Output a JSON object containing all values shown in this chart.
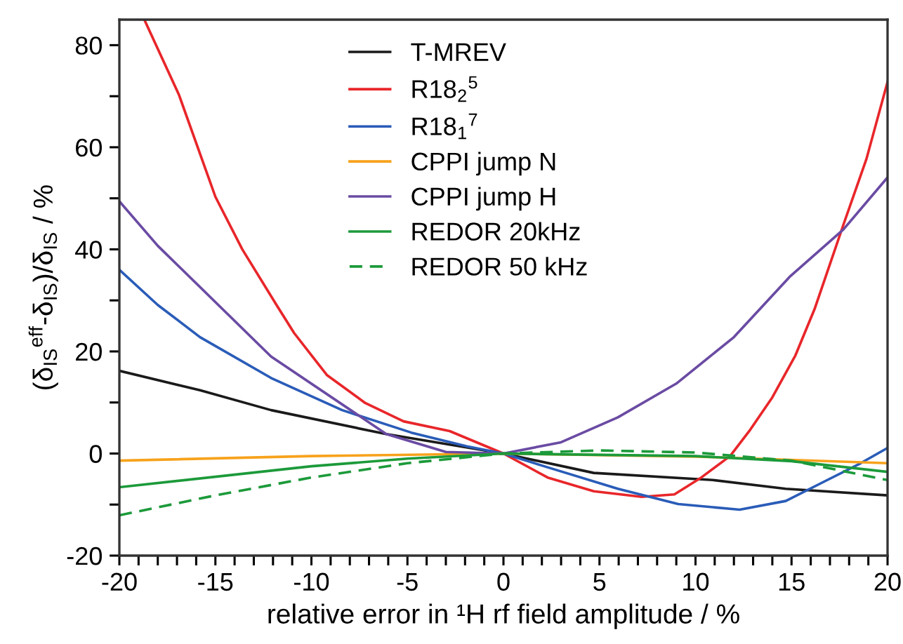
{
  "chart_data": {
    "type": "line",
    "xlabel": "relative error in ¹H rf field amplitude / %",
    "ylabel": "(δ$_{IS}$$^{eff}$-δ$_{IS}$)/δ$_{IS}$ / %",
    "xlim": [
      -20,
      20
    ],
    "ylim": [
      -20,
      85
    ],
    "xticks": [
      -20,
      {
        "value": -19,
        "label": null
      },
      {
        "value": -18,
        "label": null
      },
      {
        "value": -17,
        "label": null
      },
      {
        "value": -16,
        "label": null
      },
      -15,
      {
        "value": -14,
        "label": null
      },
      {
        "value": -13,
        "label": null
      },
      {
        "value": -12,
        "label": null
      },
      {
        "value": -11,
        "label": null
      },
      -10,
      {
        "value": -9,
        "label": null
      },
      {
        "value": -8,
        "label": null
      },
      {
        "value": -7,
        "label": null
      },
      {
        "value": -6,
        "label": null
      },
      -5,
      {
        "value": -4,
        "label": null
      },
      {
        "value": -3,
        "label": null
      },
      {
        "value": -2,
        "label": null
      },
      {
        "value": -1,
        "label": null
      },
      0,
      {
        "value": 1,
        "label": null
      },
      {
        "value": 2,
        "label": null
      },
      {
        "value": 3,
        "label": null
      },
      {
        "value": 4,
        "label": null
      },
      5,
      {
        "value": 6,
        "label": null
      },
      {
        "value": 7,
        "label": null
      },
      {
        "value": 8,
        "label": null
      },
      {
        "value": 9,
        "label": null
      },
      10,
      {
        "value": 11,
        "label": null
      },
      {
        "value": 12,
        "label": null
      },
      {
        "value": 13,
        "label": null
      },
      {
        "value": 14,
        "label": null
      },
      15,
      {
        "value": 16,
        "label": null
      },
      {
        "value": 17,
        "label": null
      },
      {
        "value": 18,
        "label": null
      },
      {
        "value": 19,
        "label": null
      },
      20
    ],
    "yticks": [
      -20,
      {
        "value": -10,
        "label": null
      },
      0,
      {
        "value": 10,
        "label": null
      },
      20,
      {
        "value": 30,
        "label": null
      },
      40,
      {
        "value": 50,
        "label": null
      },
      60,
      {
        "value": 70,
        "label": null
      },
      80
    ],
    "grid": false,
    "legend": "top",
    "marker": "none",
    "series": [
      {
        "name": "T-MREV",
        "color": "#1a1a1a",
        "x": [
          -20,
          -15.8,
          -12.1,
          -6.1,
          0,
          4.7,
          10.9,
          14.7,
          20
        ],
        "values": [
          16.2,
          12.4,
          8.5,
          3.8,
          0,
          -3.8,
          -5.2,
          -6.9,
          -8.2
        ]
      },
      {
        "name": "R18$_{2}$$^{5}$",
        "color": "#e8262a",
        "x": [
          -18.7,
          -16.9,
          -15.0,
          -13.6,
          -11.8,
          -10.9,
          -9.2,
          -7.2,
          -5.2,
          -2.8,
          0,
          2.3,
          4.7,
          7.2,
          8.9,
          10.3,
          11.8,
          12.8,
          14.0,
          15.2,
          16.2,
          17.7,
          18.9,
          20
        ],
        "values": [
          85,
          70.3,
          50.3,
          40,
          29,
          23.6,
          15.4,
          9.9,
          6.3,
          4.4,
          0,
          -4.7,
          -7.4,
          -8.5,
          -8.0,
          -4.7,
          -0.5,
          4.4,
          11,
          19.2,
          28.3,
          44.8,
          57.7,
          72.8
        ]
      },
      {
        "name": "R18$_{1}$$^{7}$",
        "color": "#2a5cb8",
        "x": [
          -20,
          -18,
          -15.8,
          -12.1,
          -8.4,
          -4.8,
          -1.9,
          0,
          2.3,
          5.96,
          9.1,
          12.3,
          14.7,
          16.7,
          18.6,
          20
        ],
        "values": [
          36.0,
          29.1,
          22.8,
          14.8,
          8.5,
          4.1,
          1.4,
          0,
          -2.7,
          -6.9,
          -9.9,
          -11.0,
          -9.3,
          -5.5,
          -1.9,
          1.1
        ]
      },
      {
        "name": "CPPI jump N",
        "color": "#f7a21b",
        "x": [
          -20,
          -10,
          0,
          10,
          20
        ],
        "values": [
          -1.4,
          -0.5,
          0,
          -0.6,
          -1.9
        ]
      },
      {
        "name": "CPPI jump H",
        "color": "#6a4ba3",
        "x": [
          -20,
          -18,
          -12.1,
          -6.1,
          -3,
          0,
          3,
          5.96,
          9,
          12,
          14.9,
          17.7,
          20
        ],
        "values": [
          49.4,
          40.7,
          19.0,
          3.8,
          0.3,
          0,
          2.2,
          7.1,
          13.7,
          22.8,
          34.6,
          43.9,
          54.1
        ]
      },
      {
        "name": "REDOR 20kHz",
        "color": "#1c9a3a",
        "x": [
          -20,
          -10,
          -5,
          0,
          10,
          15,
          20
        ],
        "values": [
          -6.6,
          -2.5,
          -1.0,
          0,
          -0.5,
          -1.5,
          -3.6
        ]
      },
      {
        "name": "REDOR 50 kHz",
        "color": "#1c9a3a",
        "line_style": "dashed",
        "x": [
          -20,
          -15,
          -10,
          -5,
          0,
          5,
          10,
          15,
          20
        ],
        "values": [
          -12.1,
          -8.2,
          -4.7,
          -1.9,
          0,
          0.6,
          0.2,
          -1.4,
          -5.2
        ]
      }
    ]
  }
}
